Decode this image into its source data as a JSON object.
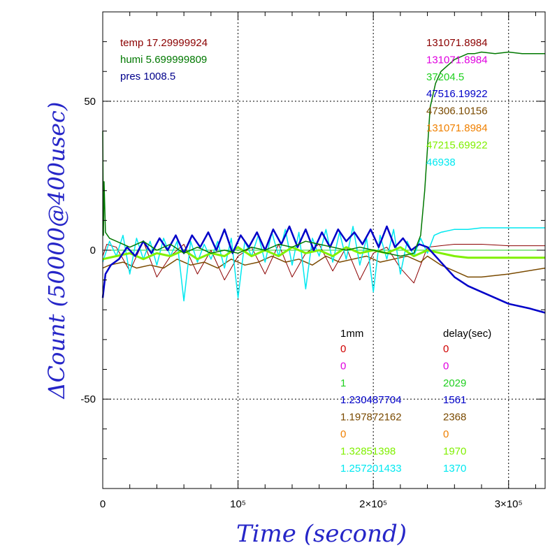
{
  "chart_data": {
    "type": "line",
    "xlabel": "Time (second)",
    "ylabel": "ΔCount (50000@400usec)",
    "xlim": [
      0,
      327000
    ],
    "ylim": [
      -80,
      80
    ],
    "x_ticks": [
      {
        "value": 0,
        "label": "0"
      },
      {
        "value": 100000,
        "label": "10⁵"
      },
      {
        "value": 200000,
        "label": "2×10⁵"
      },
      {
        "value": 300000,
        "label": "3×10⁵"
      }
    ],
    "y_ticks": [
      {
        "value": -50,
        "label": "-50"
      },
      {
        "value": 0,
        "label": "0"
      },
      {
        "value": 50,
        "label": "50"
      }
    ],
    "grid": true,
    "env_info": [
      {
        "text": "temp 17.29999924",
        "color": "#8b0000"
      },
      {
        "text": "humi 5.699999809",
        "color": "#007800"
      },
      {
        "text": "pres 1008.5",
        "color": "#00008b"
      }
    ],
    "right_values": [
      {
        "text": "131071.8984",
        "color": "#8b0000"
      },
      {
        "text": "131071.8984",
        "color": "#e000e0"
      },
      {
        "text": "37204.5",
        "color": "#20d020"
      },
      {
        "text": "47516.19922",
        "color": "#0000c8"
      },
      {
        "text": "47306.10156",
        "color": "#7a4a00"
      },
      {
        "text": "131071.8984",
        "color": "#f08000"
      },
      {
        "text": "47215.69922",
        "color": "#80f000"
      },
      {
        "text": "46938",
        "color": "#00e8f0"
      }
    ],
    "table_headers": {
      "col1": "1mm",
      "col2": "delay(sec)",
      "color": "#000000"
    },
    "table_rows": [
      {
        "v1": "0",
        "v2": "0",
        "color": "#d00000"
      },
      {
        "v1": "0",
        "v2": "0",
        "color": "#e000e0"
      },
      {
        "v1": "1",
        "v2": "2029",
        "color": "#20d020"
      },
      {
        "v1": "1.230487704",
        "v2": "1561",
        "color": "#0000c8"
      },
      {
        "v1": "1.197872162",
        "v2": "2368",
        "color": "#7a4a00"
      },
      {
        "v1": "0",
        "v2": "0",
        "color": "#f08000"
      },
      {
        "v1": "1.32851398",
        "v2": "1970",
        "color": "#80f000"
      },
      {
        "v1": "1.257201433",
        "v2": "1370",
        "color": "#00e8f0"
      }
    ],
    "series": [
      {
        "color": "#20d020",
        "width": 1,
        "x": [
          0,
          327000
        ],
        "y": [
          0,
          0
        ]
      },
      {
        "color": "#8b0000",
        "width": 1,
        "x": [
          0,
          3000,
          10000,
          20000,
          30000,
          40000,
          50000,
          60000,
          70000,
          80000,
          90000,
          100000,
          110000,
          120000,
          130000,
          140000,
          150000,
          160000,
          170000,
          180000,
          190000,
          200000,
          210000,
          220000,
          230000,
          240000,
          260000,
          280000,
          300000,
          327000
        ],
        "y": [
          -2,
          2,
          1,
          -7,
          3,
          -9,
          -2,
          2,
          -8,
          0,
          -10,
          -2,
          1,
          -8,
          2,
          -9,
          -1,
          2,
          -7,
          1,
          -10,
          -1,
          1,
          -6,
          -11,
          1,
          2,
          2,
          1.5,
          1.5
        ]
      },
      {
        "color": "#7a4a00",
        "width": 1.5,
        "x": [
          0,
          5000,
          15000,
          25000,
          35000,
          45000,
          55000,
          65000,
          75000,
          85000,
          95000,
          105000,
          115000,
          125000,
          135000,
          145000,
          155000,
          165000,
          175000,
          185000,
          195000,
          205000,
          215000,
          225000,
          235000,
          240000,
          250000,
          260000,
          270000,
          280000,
          300000,
          327000
        ],
        "y": [
          -6,
          -5,
          -4,
          -6,
          -5,
          -6,
          -3,
          -5,
          -4,
          -6,
          -3,
          -5,
          -4,
          -2,
          -4,
          -3,
          -5,
          -2,
          -4,
          -3,
          -2,
          -4,
          -3,
          -2,
          -4,
          -2,
          -5,
          -7,
          -9,
          -9,
          -8,
          -6
        ]
      },
      {
        "color": "#00e8f0",
        "width": 1.5,
        "x": [
          0,
          5000,
          10000,
          15000,
          20000,
          25000,
          30000,
          35000,
          40000,
          45000,
          50000,
          55000,
          60000,
          65000,
          70000,
          75000,
          80000,
          85000,
          90000,
          95000,
          100000,
          105000,
          110000,
          115000,
          120000,
          125000,
          130000,
          135000,
          140000,
          145000,
          150000,
          155000,
          160000,
          165000,
          170000,
          175000,
          180000,
          185000,
          190000,
          195000,
          200000,
          205000,
          210000,
          215000,
          220000,
          225000,
          230000,
          235000,
          240000,
          245000,
          250000,
          260000,
          270000,
          280000,
          290000,
          300000,
          327000
        ],
        "y": [
          -4,
          3,
          -2,
          5,
          -8,
          4,
          -3,
          3,
          -5,
          4,
          -2,
          3,
          -17,
          3,
          -4,
          2,
          -3,
          3,
          -6,
          4,
          -16,
          3,
          -2,
          5,
          -4,
          6,
          -2,
          7,
          -5,
          6,
          -13,
          4,
          -2,
          7,
          -4,
          6,
          -3,
          8,
          -5,
          4,
          -14,
          5,
          -3,
          7,
          -8,
          3,
          -2,
          4,
          -1,
          5,
          6,
          7,
          7,
          7.5,
          7.5,
          7.5,
          7.5
        ]
      },
      {
        "color": "#80f000",
        "width": 3,
        "x": [
          0,
          10000,
          20000,
          30000,
          40000,
          50000,
          60000,
          70000,
          80000,
          90000,
          100000,
          110000,
          120000,
          130000,
          140000,
          150000,
          160000,
          170000,
          180000,
          190000,
          200000,
          210000,
          220000,
          230000,
          240000,
          250000,
          260000,
          270000,
          280000,
          300000,
          327000
        ],
        "y": [
          -3,
          -2,
          -1,
          -3,
          -1,
          -2,
          0,
          -3,
          -1,
          -2,
          1,
          -2,
          0,
          -2,
          1,
          -1,
          0,
          -2,
          1,
          -1,
          0,
          -1,
          1,
          -2,
          0,
          -1,
          -2,
          -2.5,
          -2.5,
          -2.5,
          -2.5
        ]
      },
      {
        "color": "#0000c8",
        "width": 2.5,
        "x": [
          0,
          2000,
          6000,
          12000,
          18000,
          24000,
          30000,
          36000,
          42000,
          48000,
          54000,
          60000,
          66000,
          72000,
          78000,
          84000,
          90000,
          96000,
          102000,
          108000,
          114000,
          120000,
          126000,
          132000,
          138000,
          144000,
          150000,
          156000,
          162000,
          168000,
          174000,
          180000,
          186000,
          192000,
          198000,
          204000,
          210000,
          216000,
          222000,
          228000,
          234000,
          240000,
          250000,
          260000,
          270000,
          280000,
          290000,
          300000,
          315000,
          327000
        ],
        "y": [
          -16,
          -8,
          -5,
          -3,
          1,
          -2,
          3,
          -1,
          4,
          0,
          5,
          -1,
          5,
          1,
          6,
          0,
          7,
          -1,
          5,
          1,
          6,
          0,
          7,
          2,
          8,
          1,
          7,
          0,
          6,
          1,
          7,
          3,
          6,
          2,
          7,
          1,
          8,
          1,
          4,
          0,
          2,
          1,
          -4,
          -9,
          -12,
          -14,
          -16,
          -18,
          -19.5,
          -21
        ]
      },
      {
        "color": "#007800",
        "width": 1.5,
        "x": [
          0,
          500,
          1000,
          2000,
          5000,
          10000,
          20000,
          30000,
          40000,
          50000,
          60000,
          70000,
          80000,
          90000,
          100000,
          110000,
          120000,
          130000,
          140000,
          150000,
          160000,
          170000,
          180000,
          190000,
          200000,
          210000,
          220000,
          230000,
          235000,
          238000,
          242000,
          246000,
          250000,
          255000,
          260000,
          265000,
          270000,
          275000,
          280000,
          290000,
          300000,
          310000,
          327000
        ],
        "y": [
          40,
          5,
          23,
          6,
          4,
          3,
          1,
          3,
          0,
          2,
          -1,
          1,
          -1,
          0,
          -1,
          1,
          0,
          2,
          1,
          3,
          2,
          1,
          0,
          1,
          0,
          -1,
          -2,
          -1,
          5,
          20,
          48,
          56,
          60,
          62,
          64,
          65,
          66,
          66,
          66.5,
          66,
          66.5,
          66,
          66
        ]
      }
    ]
  }
}
